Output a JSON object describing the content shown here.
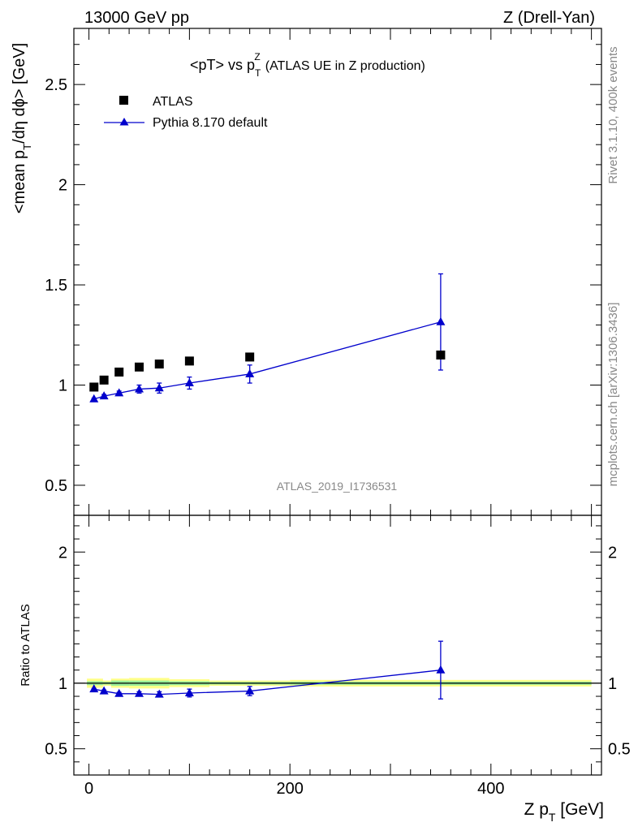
{
  "header": {
    "left": "13000 GeV pp",
    "right": "Z (Drell-Yan)"
  },
  "side_labels": {
    "rivet": "Rivet 3.1.10,  400k events",
    "mcplots": "mcplots.cern.ch [arXiv:1306.3436]"
  },
  "chart_data": [
    {
      "type": "scatter",
      "title_main": "<pT> vs p",
      "title_sup": "Z",
      "title_sub": "T",
      "title_rest": "(ATLAS UE in Z production)",
      "ylabel_a": "<mean p",
      "ylabel_sub": "T",
      "ylabel_b": "/dη dϕ> [GeV]",
      "watermark": "ATLAS_2019_I1736531",
      "xlim": [
        -15,
        510
      ],
      "ylim": [
        0.35,
        2.78
      ],
      "yticks": [
        0.5,
        1,
        1.5,
        2,
        2.5
      ],
      "ytick_labels": [
        "0.5",
        "1",
        "1.5",
        "2",
        "2.5"
      ],
      "legend_placement": "top-left",
      "series": [
        {
          "name": "ATLAS",
          "marker": "square",
          "color": "#000000",
          "x": [
            5,
            15,
            30,
            50,
            70,
            100,
            160,
            350
          ],
          "y": [
            0.99,
            1.025,
            1.065,
            1.09,
            1.105,
            1.12,
            1.14,
            1.15
          ]
        },
        {
          "name": "Pythia 8.170 default",
          "marker": "triangle",
          "color": "#0000cc",
          "x": [
            5,
            15,
            30,
            50,
            70,
            100,
            160,
            350
          ],
          "y": [
            0.93,
            0.945,
            0.96,
            0.98,
            0.985,
            1.01,
            1.055,
            1.315
          ],
          "yerr": [
            0.005,
            0.008,
            0.01,
            0.02,
            0.025,
            0.03,
            0.045,
            0.24
          ]
        }
      ]
    },
    {
      "type": "scatter",
      "ylabel": "Ratio to ATLAS",
      "xlabel_a": "Z p",
      "xlabel_sub": "T",
      "xlabel_b": " [GeV]",
      "xlim": [
        -15,
        510
      ],
      "ylim": [
        0.3,
        2.28
      ],
      "yticks": [
        0.5,
        1,
        2
      ],
      "ytick_labels": [
        "0.5",
        "1",
        "2"
      ],
      "xticks": [
        0,
        200,
        400
      ],
      "xtick_labels": [
        "0",
        "200",
        "400"
      ],
      "reference_line": 1,
      "band_colors": {
        "outer": "#ffff88",
        "inner": "#99ee99"
      },
      "series": [
        {
          "name": "Pythia 8.170 default",
          "color": "#0000cc",
          "x": [
            5,
            15,
            30,
            50,
            70,
            100,
            160,
            350
          ],
          "y": [
            0.955,
            0.94,
            0.92,
            0.92,
            0.915,
            0.925,
            0.94,
            1.1
          ],
          "yerr": [
            0.005,
            0.008,
            0.01,
            0.015,
            0.02,
            0.03,
            0.035,
            0.22
          ]
        }
      ]
    }
  ]
}
